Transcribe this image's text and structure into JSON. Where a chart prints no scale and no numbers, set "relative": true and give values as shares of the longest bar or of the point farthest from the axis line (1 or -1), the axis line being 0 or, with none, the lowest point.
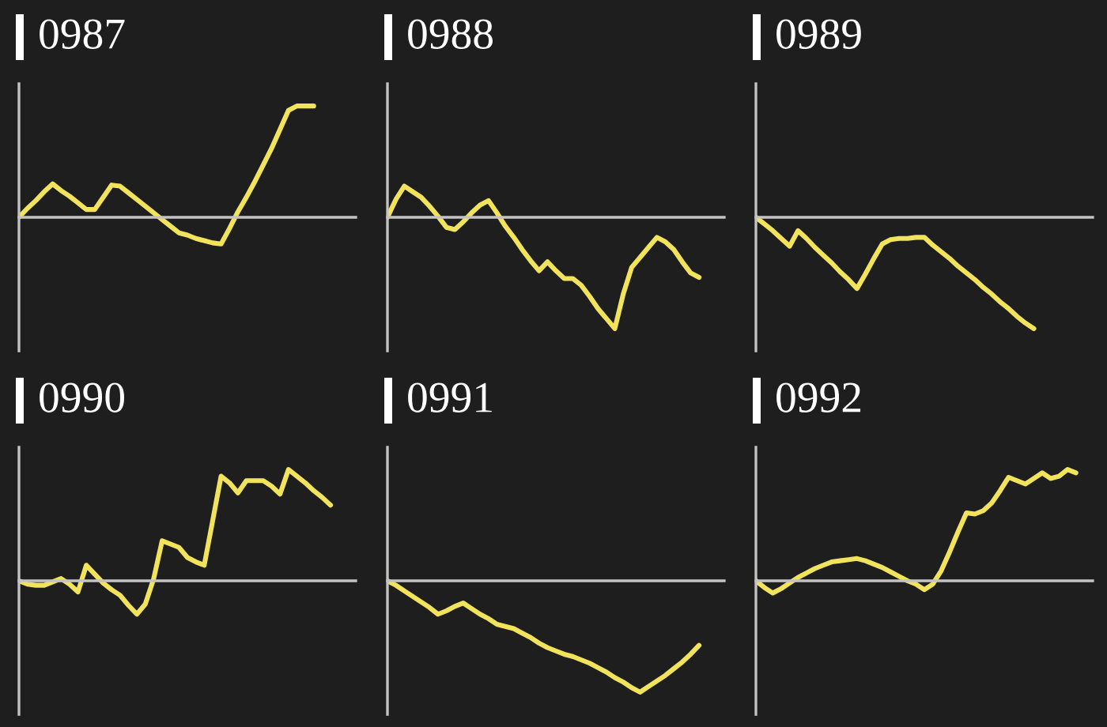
{
  "chart_data": [
    {
      "type": "line",
      "title": "0987",
      "relative": true,
      "color": "#f2e35c",
      "categories": [
        null,
        null,
        null,
        null,
        null,
        null,
        null,
        null,
        null,
        null,
        null,
        null,
        null,
        null,
        null,
        null,
        null,
        null,
        null,
        null,
        null,
        null,
        null,
        null,
        null,
        null,
        null,
        null,
        null,
        null,
        null,
        null,
        null,
        null,
        null,
        null,
        null,
        null,
        null,
        null,
        null
      ],
      "values": [
        0,
        0.08,
        0.15,
        0.23,
        0.3,
        0.24,
        0.19,
        0.13,
        0.07,
        0.07,
        0.18,
        0.29,
        0.28,
        0.22,
        0.16,
        0.1,
        0.04,
        -0.02,
        -0.08,
        -0.14,
        -0.16,
        -0.19,
        -0.21,
        -0.23,
        -0.24,
        -0.1,
        0.05,
        0.18,
        0.32,
        0.47,
        0.62,
        0.79,
        0.96,
        1,
        1,
        1,
        null,
        null,
        null,
        null,
        null
      ]
    },
    {
      "type": "line",
      "title": "0988",
      "relative": true,
      "color": "#f2e35c",
      "categories": [
        null,
        null,
        null,
        null,
        null,
        null,
        null,
        null,
        null,
        null,
        null,
        null,
        null,
        null,
        null,
        null,
        null,
        null,
        null,
        null,
        null,
        null,
        null,
        null,
        null,
        null,
        null,
        null,
        null,
        null,
        null,
        null,
        null,
        null,
        null,
        null,
        null,
        null,
        null,
        null,
        null
      ],
      "values": [
        0,
        0.16,
        0.28,
        0.23,
        0.18,
        0.1,
        0.01,
        -0.09,
        -0.11,
        -0.04,
        0.04,
        0.11,
        0.15,
        0.04,
        -0.08,
        -0.18,
        -0.29,
        -0.39,
        -0.48,
        -0.4,
        -0.48,
        -0.55,
        -0.55,
        -0.61,
        -0.71,
        -0.82,
        -0.91,
        -1,
        -0.69,
        -0.45,
        -0.36,
        -0.27,
        -0.18,
        -0.22,
        -0.29,
        -0.4,
        -0.5,
        -0.54,
        null,
        null,
        null
      ]
    },
    {
      "type": "line",
      "title": "0989",
      "relative": true,
      "color": "#f2e35c",
      "categories": [
        null,
        null,
        null,
        null,
        null,
        null,
        null,
        null,
        null,
        null,
        null,
        null,
        null,
        null,
        null,
        null,
        null,
        null,
        null,
        null,
        null,
        null,
        null,
        null,
        null,
        null,
        null,
        null,
        null,
        null,
        null,
        null,
        null,
        null,
        null,
        null,
        null,
        null,
        null,
        null,
        null
      ],
      "values": [
        0,
        -0.06,
        -0.12,
        -0.19,
        -0.26,
        -0.12,
        -0.19,
        -0.27,
        -0.34,
        -0.41,
        -0.49,
        -0.56,
        -0.64,
        -0.51,
        -0.37,
        -0.24,
        -0.2,
        -0.19,
        -0.19,
        -0.18,
        -0.18,
        -0.25,
        -0.31,
        -0.37,
        -0.44,
        -0.5,
        -0.56,
        -0.63,
        -0.69,
        -0.76,
        -0.82,
        -0.89,
        -0.95,
        -1,
        null,
        null,
        null,
        null,
        null,
        null,
        null
      ]
    },
    {
      "type": "line",
      "title": "0990",
      "relative": true,
      "color": "#f2e35c",
      "categories": [
        null,
        null,
        null,
        null,
        null,
        null,
        null,
        null,
        null,
        null,
        null,
        null,
        null,
        null,
        null,
        null,
        null,
        null,
        null,
        null,
        null,
        null,
        null,
        null,
        null,
        null,
        null,
        null,
        null,
        null,
        null,
        null,
        null,
        null,
        null,
        null,
        null,
        null,
        null,
        null,
        null
      ],
      "values": [
        0,
        -0.03,
        -0.04,
        -0.04,
        -0.01,
        0.02,
        -0.03,
        -0.1,
        0.14,
        0.06,
        -0.02,
        -0.08,
        -0.13,
        -0.22,
        -0.3,
        -0.21,
        0.02,
        0.36,
        0.33,
        0.3,
        0.21,
        0.17,
        0.14,
        0.54,
        0.94,
        0.88,
        0.79,
        0.9,
        0.9,
        0.9,
        0.85,
        0.78,
        1,
        0.94,
        0.88,
        0.81,
        0.75,
        0.68,
        null,
        null,
        null
      ]
    },
    {
      "type": "line",
      "title": "0991",
      "relative": true,
      "color": "#f2e35c",
      "categories": [
        null,
        null,
        null,
        null,
        null,
        null,
        null,
        null,
        null,
        null,
        null,
        null,
        null,
        null,
        null,
        null,
        null,
        null,
        null,
        null,
        null,
        null,
        null,
        null,
        null,
        null,
        null,
        null,
        null,
        null,
        null,
        null,
        null,
        null,
        null,
        null,
        null,
        null,
        null,
        null,
        null
      ],
      "values": [
        0,
        -0.04,
        -0.09,
        -0.14,
        -0.19,
        -0.24,
        -0.3,
        -0.27,
        -0.23,
        -0.2,
        -0.25,
        -0.3,
        -0.34,
        -0.39,
        -0.41,
        -0.43,
        -0.47,
        -0.51,
        -0.56,
        -0.6,
        -0.63,
        -0.66,
        -0.68,
        -0.71,
        -0.74,
        -0.78,
        -0.82,
        -0.87,
        -0.91,
        -0.96,
        -1,
        -0.95,
        -0.9,
        -0.85,
        -0.79,
        -0.73,
        -0.66,
        -0.58,
        null,
        null,
        null
      ]
    },
    {
      "type": "line",
      "title": "0992",
      "relative": true,
      "color": "#f2e35c",
      "categories": [
        null,
        null,
        null,
        null,
        null,
        null,
        null,
        null,
        null,
        null,
        null,
        null,
        null,
        null,
        null,
        null,
        null,
        null,
        null,
        null,
        null,
        null,
        null,
        null,
        null,
        null,
        null,
        null,
        null,
        null,
        null,
        null,
        null,
        null,
        null,
        null,
        null,
        null,
        null,
        null,
        null
      ],
      "values": [
        0,
        -0.06,
        -0.11,
        -0.07,
        -0.02,
        0.03,
        0.07,
        0.11,
        0.14,
        0.17,
        0.18,
        0.19,
        0.2,
        0.18,
        0.15,
        0.12,
        0.08,
        0.04,
        0,
        -0.03,
        -0.08,
        -0.03,
        0.09,
        0.26,
        0.44,
        0.61,
        0.6,
        0.63,
        0.7,
        0.81,
        0.93,
        0.9,
        0.87,
        0.92,
        0.97,
        0.92,
        0.94,
        1,
        0.97,
        null,
        null
      ]
    }
  ]
}
